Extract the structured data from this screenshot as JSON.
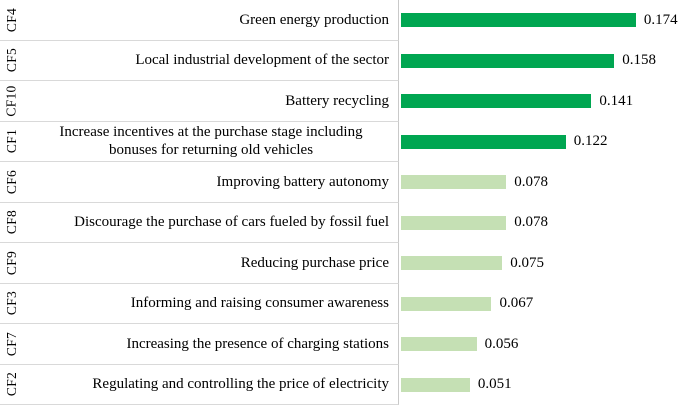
{
  "figure": {
    "description": "Horizontal bar chart ranking criteria CF1-CF10 by weight",
    "colors": {
      "high_bar": "#00a651",
      "low_bar": "#c5e0b4",
      "row_divider": "#d9d9d9",
      "axis_line": "#c9c9c9",
      "text": "#000000",
      "background": "#ffffff"
    }
  },
  "chart_data": {
    "type": "bar",
    "orientation": "horizontal",
    "title": "",
    "xlabel": "",
    "ylabel": "",
    "xlim": [
      0,
      0.2
    ],
    "legend": "none",
    "grid": "row-dividers-only",
    "value_label_position": "outside-end",
    "categories": [
      "CF4",
      "CF5",
      "CF10",
      "CF1",
      "CF6",
      "CF8",
      "CF9",
      "CF3",
      "CF7",
      "CF2"
    ],
    "values": [
      0.174,
      0.158,
      0.141,
      0.122,
      0.078,
      0.078,
      0.075,
      0.067,
      0.056,
      0.051
    ],
    "rows": [
      {
        "code": "CF4",
        "label": "Green energy production",
        "value": 0.174,
        "value_label": "0.174",
        "tier": "high",
        "two_line_centered": false
      },
      {
        "code": "CF5",
        "label": "Local industrial development of the sector",
        "value": 0.158,
        "value_label": "0.158",
        "tier": "high",
        "two_line_centered": false
      },
      {
        "code": "CF10",
        "label": "Battery recycling",
        "value": 0.141,
        "value_label": "0.141",
        "tier": "high",
        "two_line_centered": false
      },
      {
        "code": "CF1",
        "label": "Increase incentives at the purchase stage including bonuses for returning old vehicles",
        "value": 0.122,
        "value_label": "0.122",
        "tier": "high",
        "two_line_centered": true
      },
      {
        "code": "CF6",
        "label": "Improving battery autonomy",
        "value": 0.078,
        "value_label": "0.078",
        "tier": "low",
        "two_line_centered": false
      },
      {
        "code": "CF8",
        "label": "Discourage the purchase of cars fueled by fossil fuel",
        "value": 0.078,
        "value_label": "0.078",
        "tier": "low",
        "two_line_centered": false
      },
      {
        "code": "CF9",
        "label": "Reducing purchase price",
        "value": 0.075,
        "value_label": "0.075",
        "tier": "low",
        "two_line_centered": false
      },
      {
        "code": "CF3",
        "label": "Informing and raising consumer awareness",
        "value": 0.067,
        "value_label": "0.067",
        "tier": "low",
        "two_line_centered": false
      },
      {
        "code": "CF7",
        "label": "Increasing the presence of charging stations",
        "value": 0.056,
        "value_label": "0.056",
        "tier": "low",
        "two_line_centered": false
      },
      {
        "code": "CF2",
        "label": "Regulating and controlling the price of electricity",
        "value": 0.051,
        "value_label": "0.051",
        "tier": "low",
        "two_line_centered": false
      }
    ]
  }
}
